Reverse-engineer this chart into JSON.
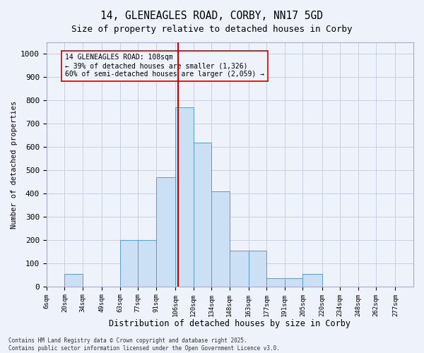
{
  "title_line1": "14, GLENEAGLES ROAD, CORBY, NN17 5GD",
  "title_line2": "Size of property relative to detached houses in Corby",
  "xlabel": "Distribution of detached houses by size in Corby",
  "ylabel": "Number of detached properties",
  "annotation_line1": "14 GLENEAGLES ROAD: 108sqm",
  "annotation_line2": "← 39% of detached houses are smaller (1,326)",
  "annotation_line3": "60% of semi-detached houses are larger (2,059) →",
  "footer_line1": "Contains HM Land Registry data © Crown copyright and database right 2025.",
  "footer_line2": "Contains public sector information licensed under the Open Government Licence v3.0.",
  "property_size": 108,
  "bar_edges": [
    6,
    20,
    34,
    49,
    63,
    77,
    91,
    106,
    120,
    134,
    148,
    163,
    177,
    191,
    205,
    220,
    234,
    248,
    262,
    277,
    291
  ],
  "bar_heights": [
    0,
    55,
    0,
    0,
    200,
    200,
    470,
    770,
    620,
    410,
    155,
    155,
    35,
    35,
    55,
    0,
    0,
    0,
    0,
    0
  ],
  "bar_fill_color": "#cce0f5",
  "bar_edge_color": "#5b9bd5",
  "vline_color": "#cc0000",
  "grid_color": "#c8d0e0",
  "bg_color": "#eef2fa",
  "annotation_box_color": "#cc0000",
  "ylim": [
    0,
    1050
  ],
  "yticks": [
    0,
    100,
    200,
    300,
    400,
    500,
    600,
    700,
    800,
    900,
    1000
  ]
}
